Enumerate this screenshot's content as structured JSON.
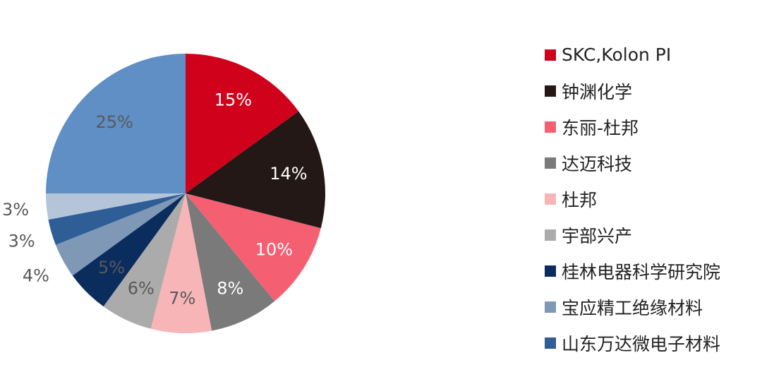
{
  "chart_data": {
    "type": "pie",
    "start_angle_deg": 0,
    "direction": "clockwise",
    "legend_position": "right",
    "slices": [
      {
        "label": "SKC,Kolon PI",
        "value": 15,
        "display": "15%",
        "color": "#D0021B",
        "label_color": "#ffffff"
      },
      {
        "label": "钟渊化学",
        "value": 14,
        "display": "14%",
        "color": "#231815",
        "label_color": "#ffffff"
      },
      {
        "label": "东丽-杜邦",
        "value": 10,
        "display": "10%",
        "color": "#F55F72",
        "label_color": "#ffffff"
      },
      {
        "label": "达迈科技",
        "value": 8,
        "display": "8%",
        "color": "#7A7A7A",
        "label_color": "#ffffff"
      },
      {
        "label": "杜邦",
        "value": 7,
        "display": "7%",
        "color": "#F7B5B8",
        "label_color": "#595959"
      },
      {
        "label": "宇部兴产",
        "value": 6,
        "display": "6%",
        "color": "#ABABAB",
        "label_color": "#595959"
      },
      {
        "label": "桂林电器科学研究院",
        "value": 5,
        "display": "5%",
        "color": "#0B2D5E",
        "label_color": "#595959"
      },
      {
        "label": "宝应精工绝缘材料",
        "value": 4,
        "display": "4%",
        "color": "#7E98B5",
        "label_color": "#595959"
      },
      {
        "label": "山东万达微电子材料",
        "value": 3,
        "display": "3%",
        "color": "#2F5E96",
        "label_color": "#595959"
      },
      {
        "label": "",
        "value": 3,
        "display": "3%",
        "color": "#B4C5DA",
        "label_color": "#595959"
      },
      {
        "label": "",
        "value": 25,
        "display": "25%",
        "color": "#5F8FC4",
        "label_color": "#595959"
      }
    ]
  },
  "legend": {
    "items": [
      {
        "label": "SKC,Kolon PI",
        "color": "#D0021B"
      },
      {
        "label": "钟渊化学",
        "color": "#231815"
      },
      {
        "label": "东丽-杜邦",
        "color": "#F55F72"
      },
      {
        "label": "达迈科技",
        "color": "#7A7A7A"
      },
      {
        "label": "杜邦",
        "color": "#F7B5B8"
      },
      {
        "label": "宇部兴产",
        "color": "#ABABAB"
      },
      {
        "label": "桂林电器科学研究院",
        "color": "#0B2D5E"
      },
      {
        "label": "宝应精工绝缘材料",
        "color": "#7E98B5"
      },
      {
        "label": "山东万达微电子材料",
        "color": "#2F5E96"
      }
    ]
  }
}
